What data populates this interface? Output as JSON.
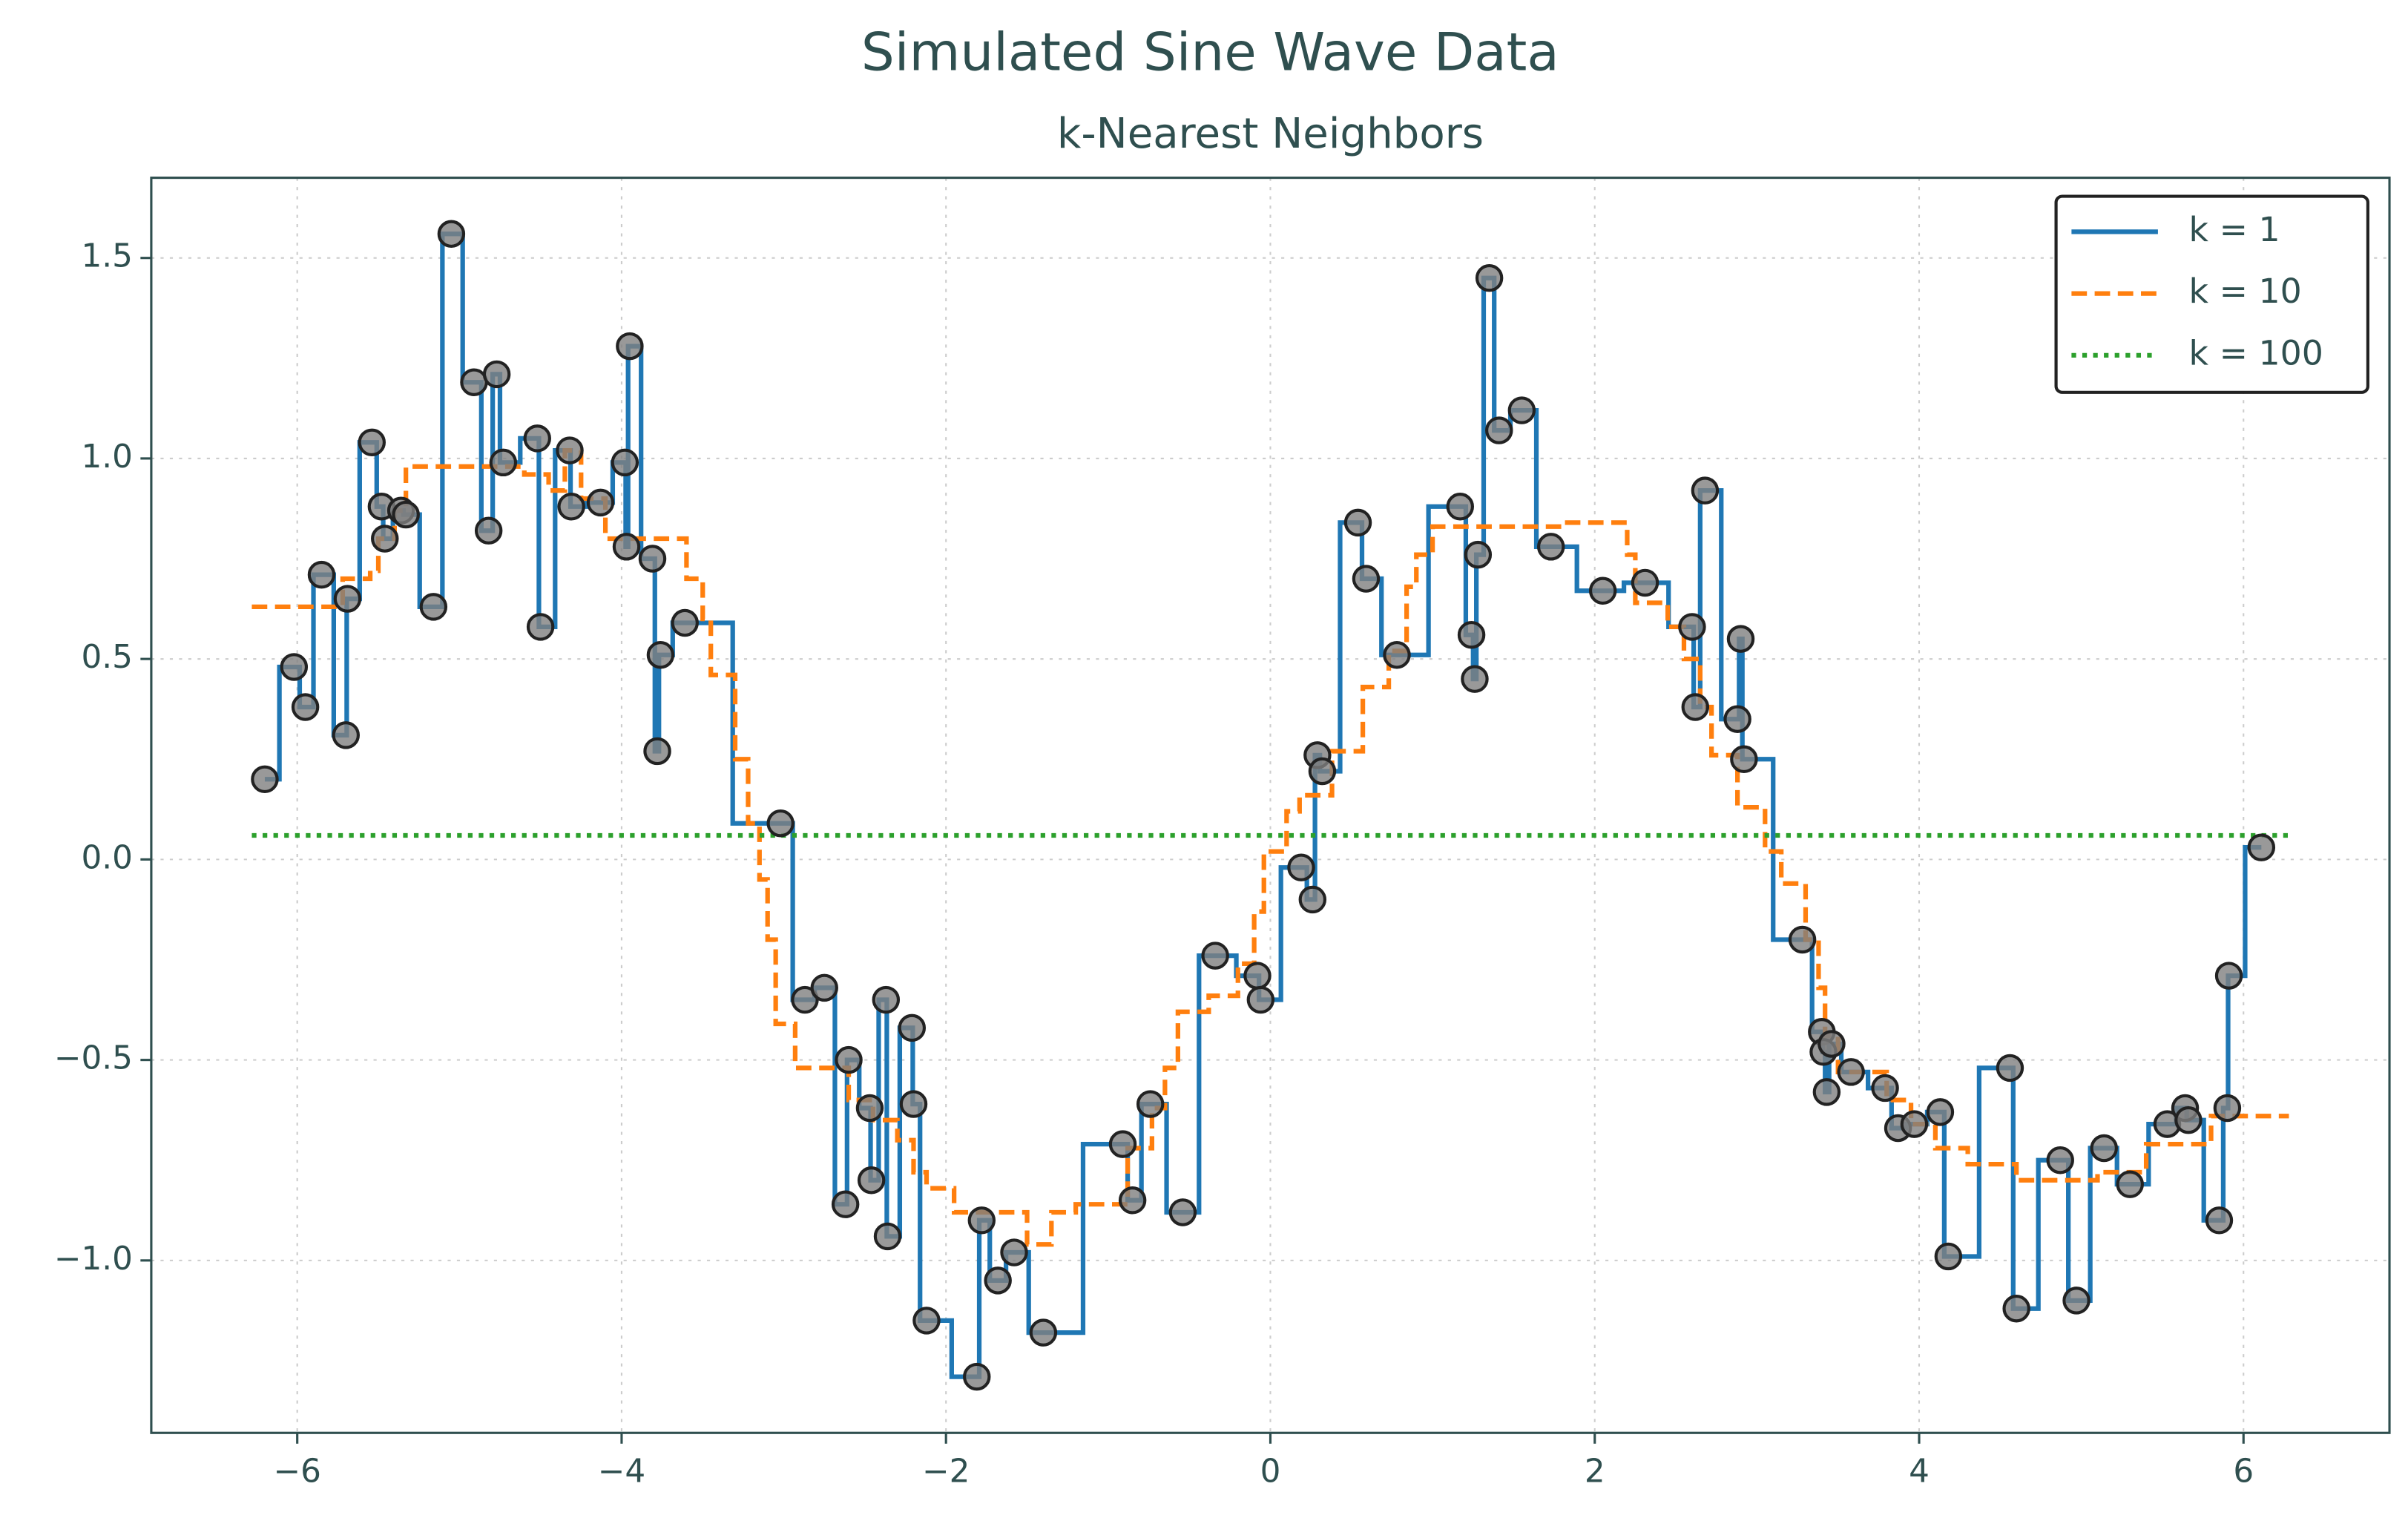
{
  "chart_data": {
    "type": "line",
    "title": "Simulated Sine Wave Data",
    "subtitle": "k-Nearest Neighbors",
    "xlim": [
      -6.9,
      6.9
    ],
    "ylim": [
      -1.43,
      1.7
    ],
    "xticks": [
      {
        "value": -6,
        "label": "−6"
      },
      {
        "value": -4,
        "label": "−4"
      },
      {
        "value": -2,
        "label": "−2"
      },
      0,
      2,
      4,
      6
    ],
    "yticks": [
      {
        "value": -1.0,
        "label": "−1.0"
      },
      {
        "value": -0.5,
        "label": "−0.5"
      },
      {
        "value": 0.0,
        "label": "0.0"
      },
      {
        "value": 0.5,
        "label": "0.5"
      },
      {
        "value": 1.0,
        "label": "1.0"
      },
      {
        "value": 1.5,
        "label": "1.5"
      }
    ],
    "grid": true,
    "legend": "upper right",
    "points": {
      "color": "#808080",
      "x": [
        -6.2,
        -6.02,
        -5.95,
        -5.85,
        -5.7,
        -5.69,
        -5.54,
        -5.48,
        -5.46,
        -5.36,
        -5.33,
        -5.16,
        -5.05,
        -4.91,
        -4.82,
        -4.77,
        -4.73,
        -4.52,
        -4.5,
        -4.32,
        -4.31,
        -4.13,
        -3.98,
        -3.97,
        -3.95,
        -3.81,
        -3.78,
        -3.76,
        -3.61,
        -3.02,
        -2.87,
        -2.75,
        -2.62,
        -2.6,
        -2.47,
        -2.46,
        -2.37,
        -2.36,
        -2.21,
        -2.2,
        -2.12,
        -1.81,
        -1.78,
        -1.68,
        -1.58,
        -1.4,
        -0.91,
        -0.85,
        -0.74,
        -0.54,
        -0.34,
        -0.08,
        -0.06,
        0.19,
        0.26,
        0.29,
        0.32,
        0.54,
        0.59,
        0.78,
        1.17,
        1.24,
        1.26,
        1.28,
        1.35,
        1.41,
        1.55,
        1.73,
        2.05,
        2.31,
        2.6,
        2.62,
        2.68,
        2.88,
        2.9,
        2.92,
        3.28,
        3.4,
        3.41,
        3.43,
        3.46,
        3.58,
        3.79,
        3.87,
        3.97,
        4.13,
        4.18,
        4.56,
        4.6,
        4.87,
        4.97,
        5.14,
        5.3,
        5.53,
        5.64,
        5.66,
        5.85,
        5.9,
        5.91,
        6.11
      ],
      "values": [
        0.2,
        0.48,
        0.38,
        0.71,
        0.31,
        0.65,
        1.04,
        0.88,
        0.8,
        0.87,
        0.86,
        0.63,
        1.56,
        1.19,
        0.82,
        1.21,
        0.99,
        1.05,
        0.58,
        1.02,
        0.88,
        0.89,
        0.99,
        0.78,
        1.28,
        0.75,
        0.27,
        0.51,
        0.59,
        0.09,
        -0.35,
        -0.32,
        -0.86,
        -0.5,
        -0.62,
        -0.8,
        -0.35,
        -0.94,
        -0.42,
        -0.61,
        -1.15,
        -1.29,
        -0.9,
        -1.05,
        -0.98,
        -1.18,
        -0.71,
        -0.85,
        -0.61,
        -0.88,
        -0.24,
        -0.29,
        -0.35,
        -0.02,
        -0.1,
        0.26,
        0.22,
        0.84,
        0.7,
        0.51,
        0.88,
        0.56,
        0.45,
        0.76,
        1.45,
        1.07,
        1.12,
        0.78,
        0.67,
        0.69,
        0.58,
        0.38,
        0.92,
        0.35,
        0.55,
        0.25,
        -0.2,
        -0.43,
        -0.48,
        -0.58,
        -0.46,
        -0.53,
        -0.57,
        -0.67,
        -0.66,
        -0.63,
        -0.99,
        -0.52,
        -1.12,
        -0.75,
        -1.1,
        -0.72,
        -0.81,
        -0.66,
        -0.62,
        -0.65,
        -0.9,
        -0.62,
        -0.29,
        0.03
      ]
    },
    "series": [
      {
        "name": "k = 1",
        "color": "#1f77b4",
        "style": "solid",
        "step": "mid",
        "x": [
          -6.2,
          -6.02,
          -5.95,
          -5.85,
          -5.7,
          -5.69,
          -5.54,
          -5.48,
          -5.46,
          -5.36,
          -5.33,
          -5.16,
          -5.05,
          -4.91,
          -4.82,
          -4.77,
          -4.73,
          -4.52,
          -4.5,
          -4.32,
          -4.31,
          -4.13,
          -3.98,
          -3.97,
          -3.95,
          -3.81,
          -3.78,
          -3.76,
          -3.61,
          -3.02,
          -2.87,
          -2.75,
          -2.62,
          -2.6,
          -2.47,
          -2.46,
          -2.37,
          -2.36,
          -2.21,
          -2.2,
          -2.12,
          -1.81,
          -1.78,
          -1.68,
          -1.58,
          -1.4,
          -0.91,
          -0.85,
          -0.74,
          -0.54,
          -0.34,
          -0.08,
          -0.06,
          0.19,
          0.26,
          0.29,
          0.32,
          0.54,
          0.59,
          0.78,
          1.17,
          1.24,
          1.26,
          1.28,
          1.35,
          1.41,
          1.55,
          1.73,
          2.05,
          2.31,
          2.6,
          2.62,
          2.68,
          2.88,
          2.9,
          2.92,
          3.28,
          3.4,
          3.41,
          3.43,
          3.46,
          3.58,
          3.79,
          3.87,
          3.97,
          4.13,
          4.18,
          4.56,
          4.6,
          4.87,
          4.97,
          5.14,
          5.3,
          5.53,
          5.64,
          5.66,
          5.85,
          5.9,
          5.91,
          6.11
        ],
        "values": [
          0.2,
          0.48,
          0.38,
          0.71,
          0.31,
          0.65,
          1.04,
          0.88,
          0.8,
          0.87,
          0.86,
          0.63,
          1.56,
          1.19,
          0.82,
          1.21,
          0.99,
          1.05,
          0.58,
          1.02,
          0.88,
          0.89,
          0.99,
          0.78,
          1.28,
          0.75,
          0.27,
          0.51,
          0.59,
          0.09,
          -0.35,
          -0.32,
          -0.86,
          -0.5,
          -0.62,
          -0.8,
          -0.35,
          -0.94,
          -0.42,
          -0.61,
          -1.15,
          -1.29,
          -0.9,
          -1.05,
          -0.98,
          -1.18,
          -0.71,
          -0.85,
          -0.61,
          -0.88,
          -0.24,
          -0.29,
          -0.35,
          -0.02,
          -0.1,
          0.26,
          0.22,
          0.84,
          0.7,
          0.51,
          0.88,
          0.56,
          0.45,
          0.76,
          1.45,
          1.07,
          1.12,
          0.78,
          0.67,
          0.69,
          0.58,
          0.38,
          0.92,
          0.35,
          0.55,
          0.25,
          -0.2,
          -0.43,
          -0.48,
          -0.58,
          -0.46,
          -0.53,
          -0.57,
          -0.67,
          -0.66,
          -0.63,
          -0.99,
          -0.52,
          -1.12,
          -0.75,
          -1.1,
          -0.72,
          -0.81,
          -0.66,
          -0.62,
          -0.65,
          -0.9,
          -0.62,
          -0.29,
          0.03
        ]
      },
      {
        "name": "k = 10",
        "color": "#ff7f0e",
        "style": "dashed",
        "step": "post",
        "x": [
          -6.28,
          -5.72,
          -5.55,
          -5.5,
          -5.4,
          -5.33,
          -4.6,
          -4.45,
          -4.35,
          -4.25,
          -4.1,
          -3.6,
          -3.5,
          -3.45,
          -3.3,
          -3.22,
          -3.15,
          -3.1,
          -3.05,
          -2.93,
          -2.6,
          -2.45,
          -2.3,
          -2.2,
          -2.12,
          -1.95,
          -1.5,
          -1.35,
          -1.2,
          -0.88,
          -0.73,
          -0.65,
          -0.57,
          -0.38,
          -0.2,
          -0.1,
          -0.04,
          0.1,
          0.18,
          0.38,
          0.57,
          0.73,
          0.84,
          0.9,
          1.0,
          1.8,
          2.2,
          2.25,
          2.45,
          2.55,
          2.65,
          2.72,
          2.88,
          3.05,
          3.15,
          3.3,
          3.38,
          3.42,
          3.5,
          3.8,
          3.95,
          4.1,
          4.3,
          4.6,
          5.1,
          5.4,
          5.8,
          6.28
        ],
        "values": [
          0.63,
          0.7,
          0.72,
          0.8,
          0.87,
          0.98,
          0.96,
          0.92,
          1.02,
          0.9,
          0.8,
          0.7,
          0.6,
          0.46,
          0.25,
          0.09,
          -0.05,
          -0.2,
          -0.41,
          -0.52,
          -0.6,
          -0.65,
          -0.7,
          -0.78,
          -0.82,
          -0.88,
          -0.96,
          -0.88,
          -0.86,
          -0.72,
          -0.62,
          -0.52,
          -0.38,
          -0.34,
          -0.26,
          -0.13,
          0.02,
          0.12,
          0.16,
          0.27,
          0.43,
          0.52,
          0.68,
          0.76,
          0.83,
          0.84,
          0.76,
          0.64,
          0.58,
          0.5,
          0.38,
          0.26,
          0.13,
          0.02,
          -0.06,
          -0.2,
          -0.32,
          -0.44,
          -0.53,
          -0.6,
          -0.66,
          -0.72,
          -0.76,
          -0.8,
          -0.78,
          -0.71,
          -0.64,
          -0.64
        ]
      },
      {
        "name": "k = 100",
        "color": "#2ca02c",
        "style": "dotted",
        "step": "post",
        "x": [
          -6.28,
          6.28
        ],
        "values": [
          0.06,
          0.06
        ]
      }
    ]
  }
}
